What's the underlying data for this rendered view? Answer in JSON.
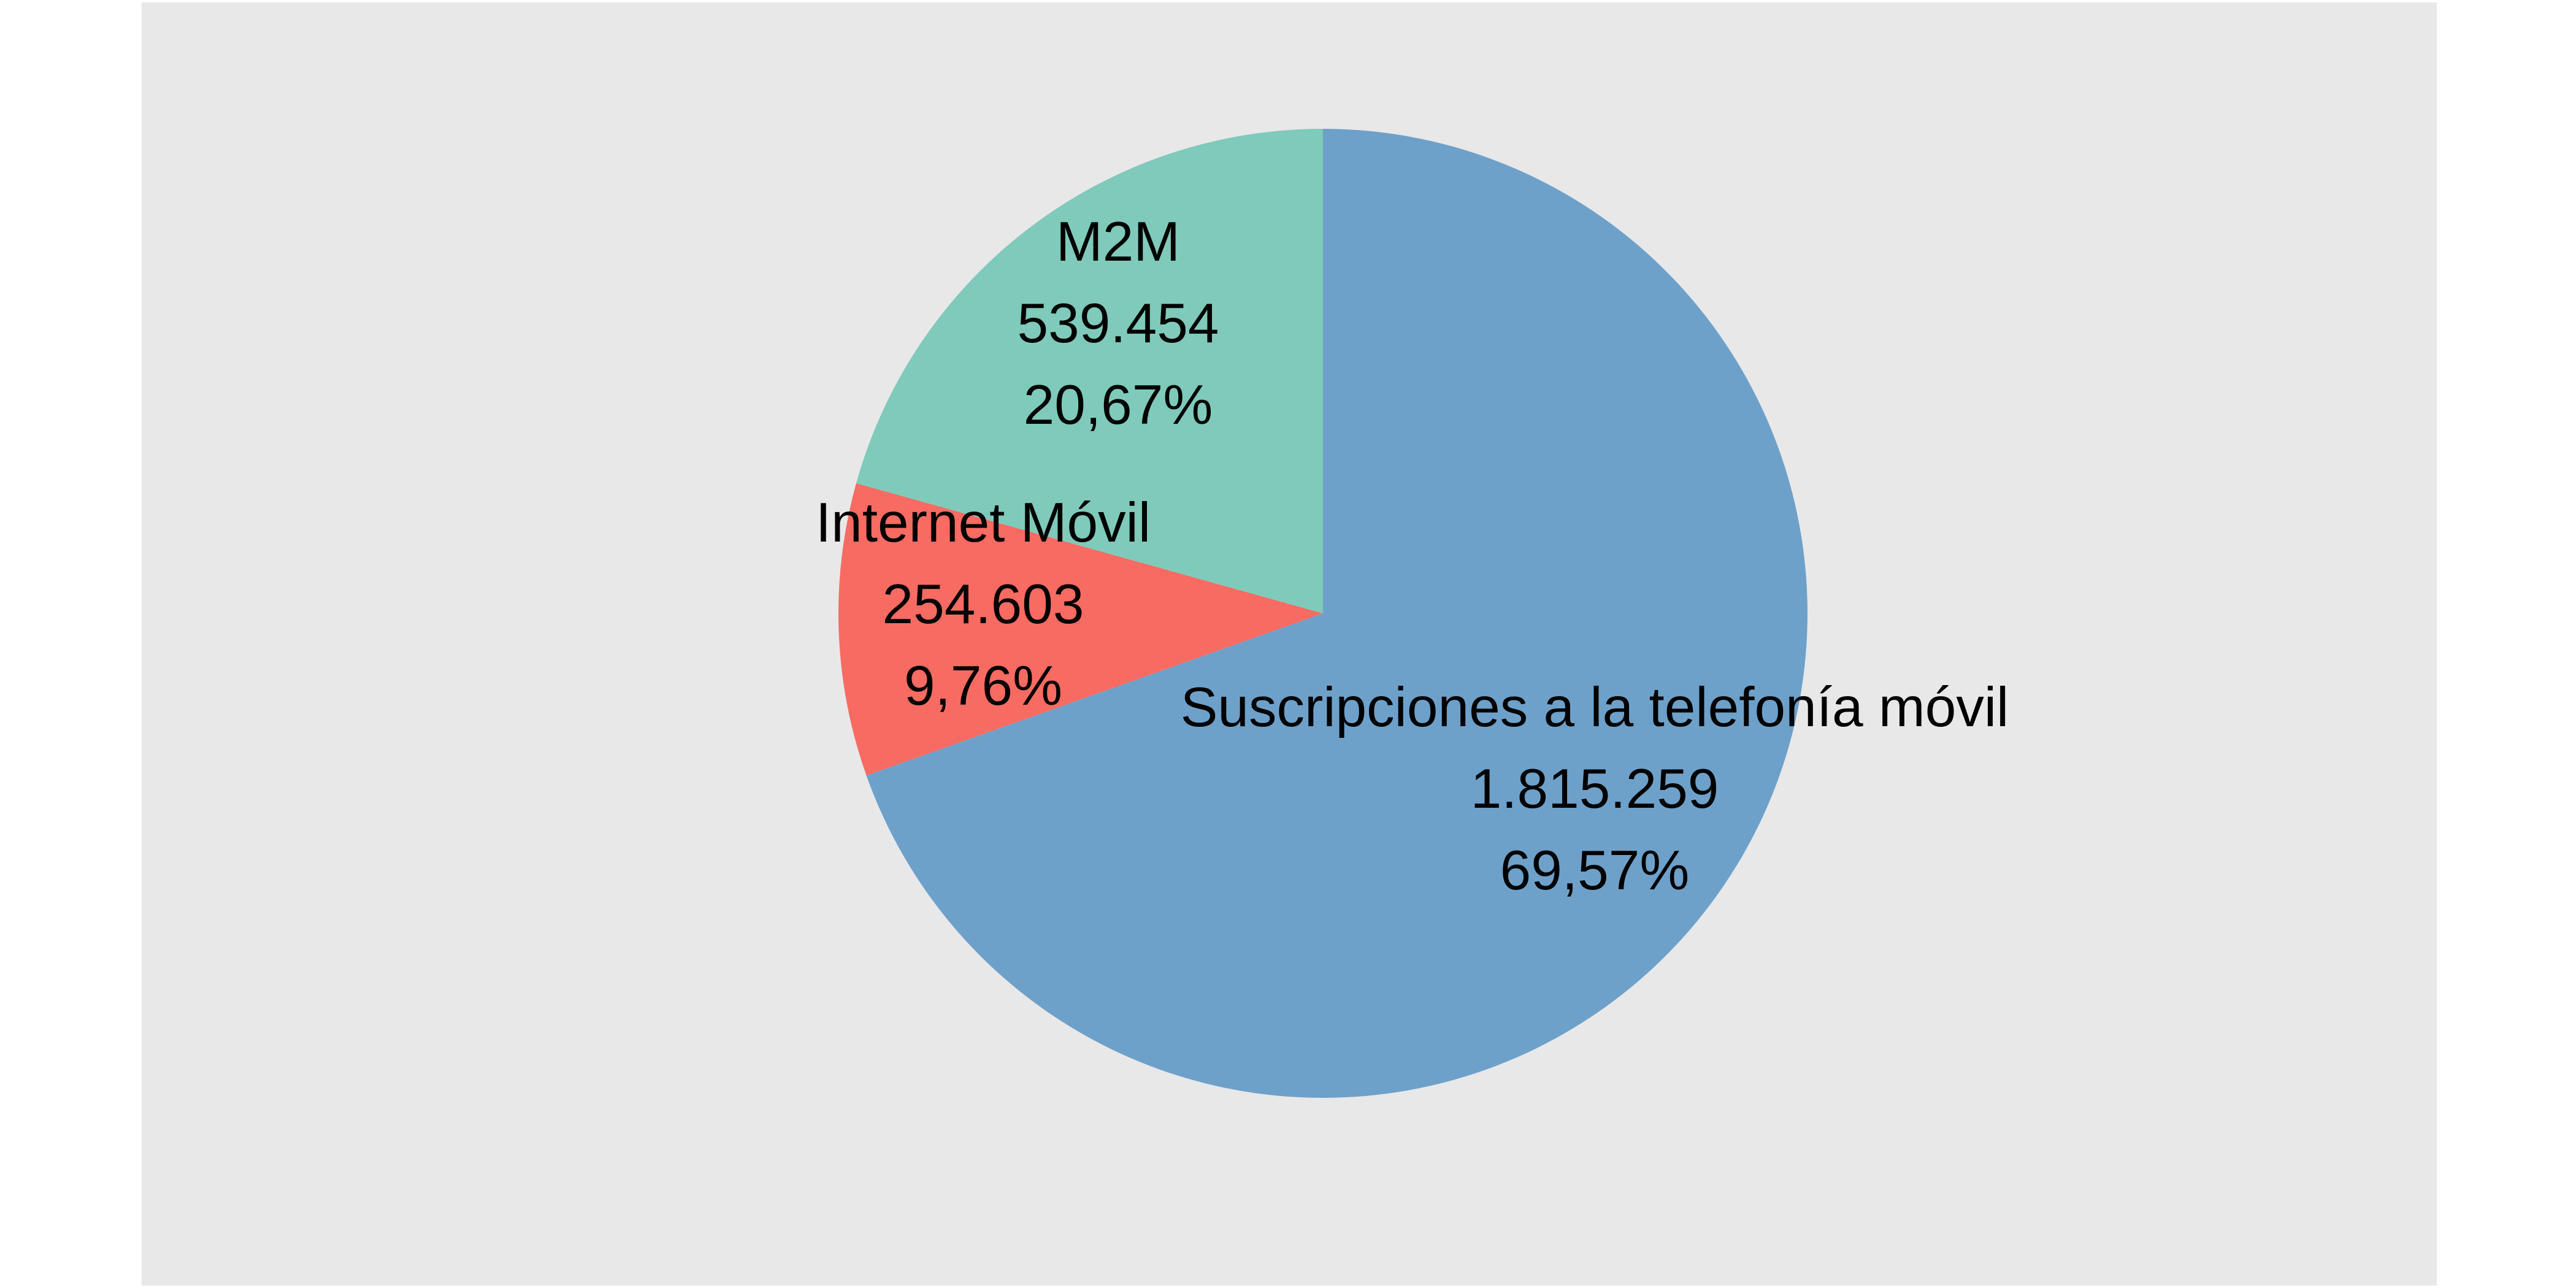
{
  "chart_data": {
    "type": "pie",
    "title": "",
    "start_angle_deg": 0,
    "direction": "clockwise",
    "background_color": "#e8e8e9",
    "slices": [
      {
        "label": "Suscripciones a la telefonía móvil",
        "value": 1815259,
        "value_text": "1.815.259",
        "percent": 69.57,
        "percent_text": "69,57%",
        "color": "#6ea1ca"
      },
      {
        "label": "Internet Móvil",
        "value": 254603,
        "value_text": "254.603",
        "percent": 9.76,
        "percent_text": "9,76%",
        "color": "#f76b62"
      },
      {
        "label": "M2M",
        "value": 539454,
        "value_text": "539.454",
        "percent": 20.67,
        "percent_text": "20,67%",
        "color": "#7fcabb"
      }
    ]
  }
}
